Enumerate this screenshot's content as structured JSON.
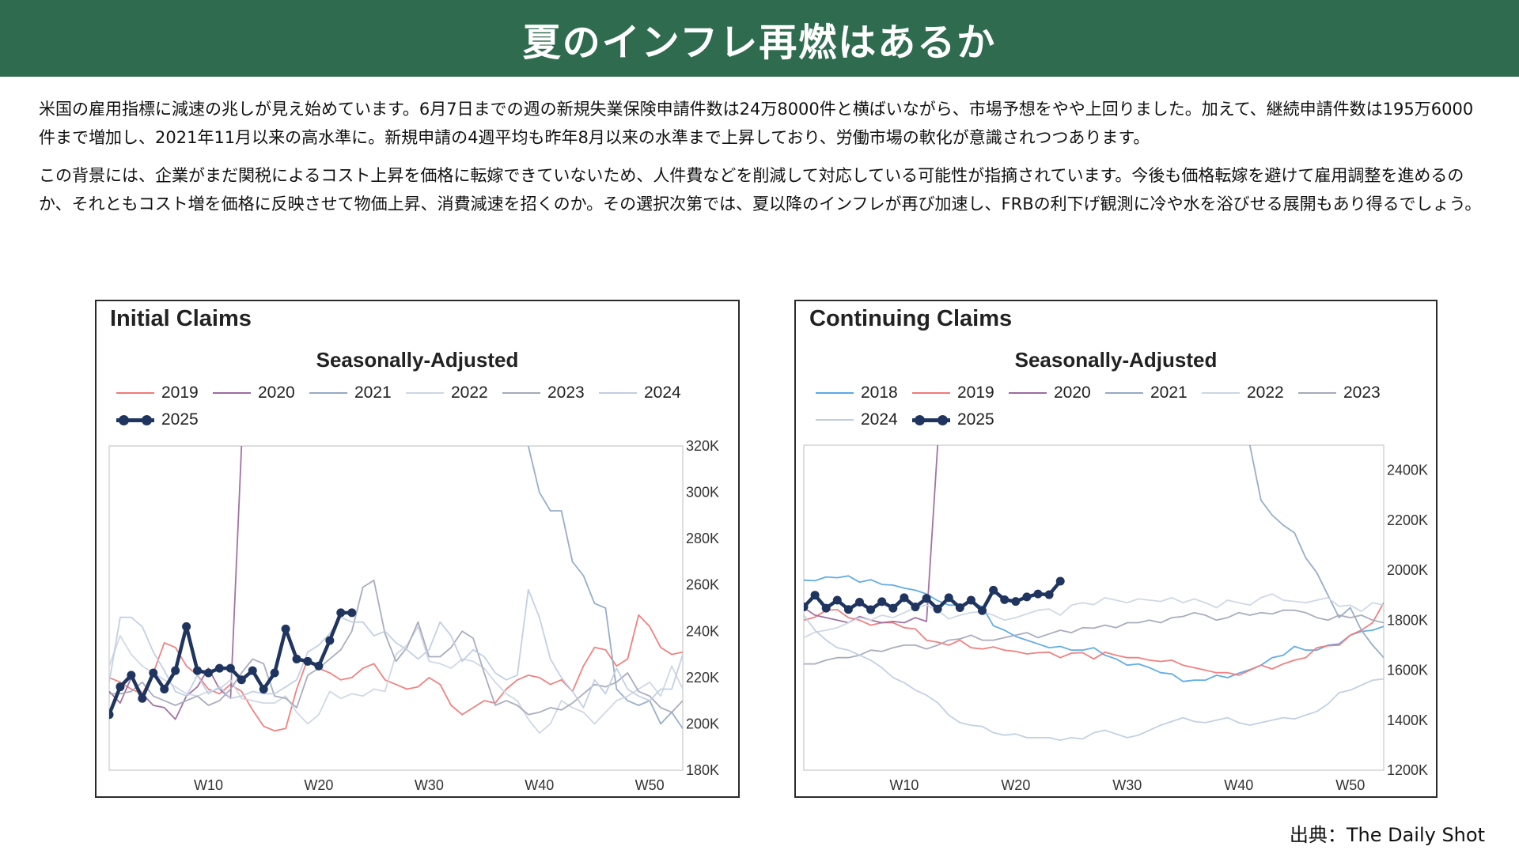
{
  "header": {
    "title": "夏のインフレ再燃はあるか"
  },
  "body": {
    "paragraph1": "米国の雇用指標に減速の兆しが見え始めています。6月7日までの週の新規失業保険申請件数は24万8000件と横ばいながら、市場予想をやや上回りました。加えて、継続申請件数は195万6000件まで増加し、2021年11月以来の高水準に。新規申請の4週平均も昨年8月以来の水準まで上昇しており、労働市場の軟化が意識されつつあります。",
    "paragraph2": "この背景には、企業がまだ関税によるコスト上昇を価格に転嫁できていないため、人件費などを削減して対応している可能性が指摘されています。今後も価格転嫁を避けて雇用調整を進めるのか、それともコスト増を価格に反映させて物価上昇、消費減速を招くのか。その選択次第では、夏以降のインフレが再び加速し、FRBの利下げ観測に冷や水を浴びせる展開もあり得るでしょう。"
  },
  "source": "出典：The Daily Shot",
  "colors": {
    "banner": "#2f6b4f",
    "s2018": "#5aa9e6",
    "s2019": "#f07a7a",
    "s2020": "#9c6b9e",
    "s2021": "#94aac4",
    "s2022": "#cdd6e4",
    "s2023": "#a4a9bb",
    "s2024": "#c0cee2",
    "s2025": "#1f3560"
  },
  "chart_data": [
    {
      "type": "line",
      "title": "Initial Claims",
      "subtitle": "Seasonally-Adjusted",
      "x_ticks": [
        {
          "value": 10,
          "label": "W10"
        },
        {
          "value": 20,
          "label": "W20"
        },
        {
          "value": 30,
          "label": "W30"
        },
        {
          "value": 40,
          "label": "W40"
        },
        {
          "value": 50,
          "label": "W50"
        }
      ],
      "xlim": [
        1,
        53
      ],
      "y_ticks": [
        {
          "value": 180,
          "label": "180K"
        },
        {
          "value": 200,
          "label": "200K"
        },
        {
          "value": 220,
          "label": "220K"
        },
        {
          "value": 240,
          "label": "240K"
        },
        {
          "value": 260,
          "label": "260K"
        },
        {
          "value": 280,
          "label": "280K"
        },
        {
          "value": 300,
          "label": "300K"
        },
        {
          "value": 320,
          "label": "320K"
        }
      ],
      "ylim": [
        180,
        320
      ],
      "y_unit": "thousands",
      "series": [
        {
          "name": "2019",
          "color_key": "s2019",
          "bold": false,
          "values": [
            220,
            218,
            215,
            213,
            222,
            235,
            233,
            225,
            221,
            215,
            213,
            217,
            214,
            206,
            199,
            197,
            198,
            215,
            228,
            224,
            222,
            219,
            220,
            224,
            226,
            219,
            217,
            215,
            216,
            220,
            217,
            208,
            204,
            207,
            210,
            209,
            215,
            219,
            221,
            220,
            217,
            219,
            214,
            225,
            233,
            232,
            225,
            228,
            247,
            242,
            233,
            230,
            231
          ]
        },
        {
          "name": "2020",
          "color_key": "s2020",
          "bold": false,
          "values": [
            214,
            209,
            220,
            213,
            208,
            207,
            202,
            212,
            216,
            224,
            215,
            211,
            320
          ]
        },
        {
          "name": "2021",
          "color_key": "s2021",
          "bold": false,
          "values": [
            null,
            null,
            null,
            null,
            null,
            null,
            null,
            null,
            null,
            null,
            null,
            null,
            null,
            null,
            null,
            null,
            null,
            null,
            null,
            null,
            null,
            null,
            null,
            null,
            null,
            null,
            null,
            null,
            null,
            null,
            null,
            null,
            null,
            null,
            null,
            null,
            null,
            null,
            320,
            300,
            292,
            292,
            270,
            264,
            252,
            250,
            215,
            210,
            208,
            210,
            200,
            205,
            198
          ]
        },
        {
          "name": "2022",
          "color_key": "s2022",
          "bold": false,
          "values": [
            225,
            238,
            230,
            225,
            222,
            219,
            216,
            213,
            212,
            214,
            215,
            219,
            211,
            210,
            209,
            209,
            212,
            205,
            200,
            204,
            214,
            211,
            213,
            212,
            215,
            214,
            230,
            234,
            242,
            227,
            226,
            224,
            228,
            227,
            224,
            218,
            213,
            210,
            202,
            196,
            200,
            210,
            207,
            205,
            200,
            205,
            210,
            212,
            215,
            218,
            212,
            225,
            215
          ]
        },
        {
          "name": "2023",
          "color_key": "s2023",
          "bold": false,
          "values": [
            213,
            213,
            214,
            218,
            212,
            210,
            208,
            210,
            212,
            208,
            210,
            215,
            222,
            228,
            226,
            212,
            211,
            207,
            221,
            224,
            228,
            232,
            240,
            259,
            262,
            239,
            227,
            233,
            244,
            229,
            229,
            233,
            240,
            237,
            222,
            208,
            210,
            208,
            204,
            205,
            207,
            206,
            209,
            213,
            217,
            216,
            218,
            222,
            214,
            212,
            207,
            205,
            210
          ]
        },
        {
          "name": "2024",
          "color_key": "s2024",
          "bold": false,
          "values": [
            218,
            246,
            246,
            242,
            231,
            223,
            214,
            212,
            221,
            213,
            216,
            211,
            212,
            214,
            213,
            213,
            216,
            219,
            231,
            234,
            239,
            246,
            244,
            244,
            238,
            240,
            235,
            232,
            228,
            232,
            244,
            238,
            227,
            232,
            229,
            222,
            219,
            221,
            258,
            246,
            228,
            220,
            214,
            207,
            219,
            213,
            224,
            215,
            212,
            210,
            215,
            215,
            230
          ]
        },
        {
          "name": "2025",
          "color_key": "s2025",
          "bold": true,
          "values": [
            204,
            216,
            221,
            211,
            222,
            215,
            223,
            242,
            223,
            222,
            224,
            224,
            219,
            223,
            215,
            222,
            241,
            228,
            227,
            225,
            236,
            248,
            248
          ]
        }
      ]
    },
    {
      "type": "line",
      "title": "Continuing Claims",
      "subtitle": "Seasonally-Adjusted",
      "x_ticks": [
        {
          "value": 10,
          "label": "W10"
        },
        {
          "value": 20,
          "label": "W20"
        },
        {
          "value": 30,
          "label": "W30"
        },
        {
          "value": 40,
          "label": "W40"
        },
        {
          "value": 50,
          "label": "W50"
        }
      ],
      "xlim": [
        1,
        53
      ],
      "y_ticks": [
        {
          "value": 1200,
          "label": "1200K"
        },
        {
          "value": 1400,
          "label": "1400K"
        },
        {
          "value": 1600,
          "label": "1600K"
        },
        {
          "value": 1800,
          "label": "1800K"
        },
        {
          "value": 2000,
          "label": "2000K"
        },
        {
          "value": 2200,
          "label": "2200K"
        },
        {
          "value": 2400,
          "label": "2400K"
        }
      ],
      "ylim": [
        1200,
        2500
      ],
      "y_unit": "thousands",
      "series": [
        {
          "name": "2018",
          "color_key": "s2018",
          "bold": false,
          "values": [
            1960,
            1958,
            1973,
            1970,
            1977,
            1952,
            1962,
            1943,
            1940,
            1928,
            1920,
            1905,
            1878,
            1860,
            1860,
            1870,
            1855,
            1778,
            1760,
            1735,
            1720,
            1705,
            1690,
            1695,
            1680,
            1680,
            1690,
            1660,
            1645,
            1620,
            1625,
            1610,
            1590,
            1585,
            1555,
            1560,
            1560,
            1580,
            1570,
            1588,
            1602,
            1620,
            1650,
            1660,
            1695,
            1680,
            1680,
            1700,
            1705,
            1740,
            1755,
            1760,
            1775
          ]
        },
        {
          "name": "2019",
          "color_key": "s2019",
          "bold": false,
          "values": [
            1800,
            1812,
            1840,
            1842,
            1810,
            1800,
            1780,
            1790,
            1790,
            1770,
            1765,
            1720,
            1712,
            1700,
            1720,
            1690,
            1685,
            1693,
            1680,
            1675,
            1665,
            1670,
            1672,
            1650,
            1668,
            1670,
            1645,
            1672,
            1660,
            1650,
            1650,
            1640,
            1635,
            1640,
            1620,
            1610,
            1600,
            1590,
            1590,
            1580,
            1600,
            1620,
            1605,
            1625,
            1640,
            1650,
            1690,
            1698,
            1700,
            1740,
            1760,
            1790,
            1870
          ]
        },
        {
          "name": "2020",
          "color_key": "s2020",
          "bold": false,
          "values": [
            1850,
            1820,
            1810,
            1800,
            1790,
            1815,
            1800,
            1790,
            1795,
            1790,
            1810,
            1795,
            2500
          ]
        },
        {
          "name": "2021",
          "color_key": "s2021",
          "bold": false,
          "values": [
            null,
            null,
            null,
            null,
            null,
            null,
            null,
            null,
            null,
            null,
            null,
            null,
            null,
            null,
            null,
            null,
            null,
            null,
            null,
            null,
            null,
            null,
            null,
            null,
            null,
            null,
            null,
            null,
            null,
            null,
            null,
            null,
            null,
            null,
            null,
            null,
            null,
            null,
            null,
            null,
            2500,
            2280,
            2220,
            2180,
            2150,
            2050,
            1990,
            1900,
            1810,
            1850,
            1760,
            1700,
            1650
          ]
        },
        {
          "name": "2022",
          "color_key": "s2022",
          "bold": false,
          "values": [
            1730,
            1752,
            1760,
            1770,
            1790,
            1810,
            1800,
            1820,
            1810,
            1830,
            1850,
            1860,
            1840,
            1805,
            1820,
            1830,
            1835,
            1820,
            1800,
            1810,
            1825,
            1840,
            1845,
            1820,
            1860,
            1870,
            1862,
            1890,
            1880,
            1870,
            1885,
            1880,
            1875,
            1890,
            1870,
            1885,
            1870,
            1850,
            1880,
            1870,
            1860,
            1890,
            1905,
            1880,
            1875,
            1870,
            1880,
            1890,
            1855,
            1860,
            1835,
            1870,
            1860
          ]
        },
        {
          "name": "2023",
          "color_key": "s2023",
          "bold": false,
          "values": [
            1625,
            1625,
            1640,
            1650,
            1650,
            1660,
            1680,
            1675,
            1690,
            1700,
            1700,
            1685,
            1700,
            1720,
            1725,
            1740,
            1720,
            1720,
            1730,
            1740,
            1750,
            1730,
            1745,
            1760,
            1750,
            1770,
            1768,
            1780,
            1770,
            1790,
            1790,
            1800,
            1790,
            1810,
            1815,
            1830,
            1820,
            1800,
            1810,
            1830,
            1820,
            1830,
            1825,
            1840,
            1840,
            1830,
            1810,
            1800,
            1820,
            1810,
            1820,
            1800,
            1790
          ]
        },
        {
          "name": "2024",
          "color_key": "s2024",
          "bold": false,
          "values": [
            1820,
            1760,
            1720,
            1690,
            1680,
            1660,
            1640,
            1610,
            1570,
            1550,
            1520,
            1500,
            1470,
            1420,
            1390,
            1380,
            1375,
            1350,
            1340,
            1345,
            1330,
            1330,
            1330,
            1320,
            1330,
            1325,
            1350,
            1360,
            1345,
            1330,
            1340,
            1360,
            1380,
            1395,
            1410,
            1395,
            1390,
            1400,
            1410,
            1390,
            1380,
            1390,
            1400,
            1410,
            1405,
            1420,
            1435,
            1465,
            1510,
            1520,
            1540,
            1560,
            1565
          ]
        },
        {
          "name": "2025",
          "color_key": "s2025",
          "bold": true,
          "values": [
            1853,
            1900,
            1848,
            1880,
            1843,
            1872,
            1842,
            1874,
            1848,
            1890,
            1853,
            1887,
            1845,
            1890,
            1850,
            1880,
            1838,
            1920,
            1882,
            1875,
            1893,
            1905,
            1902,
            1956
          ]
        }
      ]
    }
  ]
}
